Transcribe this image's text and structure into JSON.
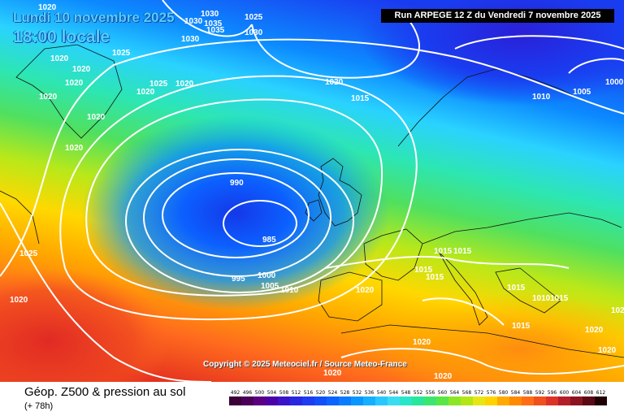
{
  "header": {
    "valid_date": "Lundi 10 novembre 2025",
    "valid_time": "18:00 locale",
    "run": "Run ARPEGE 12 Z du Vendredi 7 novembre 2025"
  },
  "map": {
    "copyright": "Copyright © 2025 Meteociel.fr / Source Meteo-France",
    "isobar_labels": [
      "990",
      "985",
      "995",
      "1000",
      "1005",
      "1010",
      "1015",
      "1020",
      "1025",
      "1030",
      "1035",
      "1000",
      "1005",
      "1010",
      "1015",
      "1015",
      "1015",
      "1015",
      "1015",
      "1015",
      "1020",
      "1020",
      "1020",
      "1020",
      "1020",
      "1020",
      "1025",
      "1025",
      "1030",
      "1030",
      "1030",
      "1035",
      "1020",
      "1020",
      "1020",
      "1020",
      "1020",
      "1020",
      "1020",
      "1020",
      "1010",
      "1015",
      "1020",
      "1025",
      "1020"
    ],
    "low_center_value": 985
  },
  "legend": {
    "product": "Géop. Z500 & pression au sol",
    "lead_time": "(+ 78h)",
    "scale": [
      {
        "label": "492",
        "color": "#3a0038"
      },
      {
        "label": "496",
        "color": "#4a0058"
      },
      {
        "label": "500",
        "color": "#5a0080"
      },
      {
        "label": "504",
        "color": "#4b00a8"
      },
      {
        "label": "508",
        "color": "#3a14c8"
      },
      {
        "label": "512",
        "color": "#2828e0"
      },
      {
        "label": "516",
        "color": "#1e3cf2"
      },
      {
        "label": "520",
        "color": "#1050f8"
      },
      {
        "label": "524",
        "color": "#0a64ff"
      },
      {
        "label": "528",
        "color": "#0a7cff"
      },
      {
        "label": "532",
        "color": "#0a96ff"
      },
      {
        "label": "536",
        "color": "#14b0ff"
      },
      {
        "label": "540",
        "color": "#28c8ff"
      },
      {
        "label": "544",
        "color": "#3cdcf0"
      },
      {
        "label": "548",
        "color": "#28e6c8"
      },
      {
        "label": "552",
        "color": "#28e69a"
      },
      {
        "label": "556",
        "color": "#3ce66e"
      },
      {
        "label": "560",
        "color": "#5ae646"
      },
      {
        "label": "564",
        "color": "#8ce628"
      },
      {
        "label": "568",
        "color": "#b4e614"
      },
      {
        "label": "572",
        "color": "#e6e614"
      },
      {
        "label": "576",
        "color": "#ffd200"
      },
      {
        "label": "580",
        "color": "#ffaa00"
      },
      {
        "label": "584",
        "color": "#ff8a00"
      },
      {
        "label": "588",
        "color": "#ff6e14"
      },
      {
        "label": "592",
        "color": "#f0501e"
      },
      {
        "label": "596",
        "color": "#dc3228"
      },
      {
        "label": "600",
        "color": "#b41e28"
      },
      {
        "label": "604",
        "color": "#8c1420"
      },
      {
        "label": "608",
        "color": "#5a0a14"
      },
      {
        "label": "612",
        "color": "#1e0005"
      }
    ]
  }
}
